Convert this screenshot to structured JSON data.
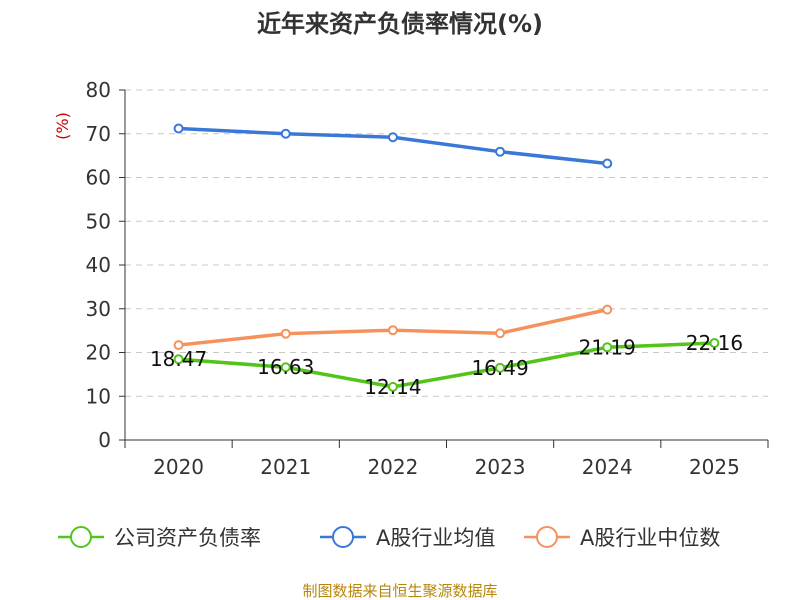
{
  "chart_data": {
    "type": "line",
    "title": "近年来资产负债率情况(%)",
    "y_unit": "(%)",
    "ylim": [
      0,
      80
    ],
    "y_ticks": [
      0,
      10,
      20,
      30,
      40,
      50,
      60,
      70,
      80
    ],
    "grid": true,
    "legend_position": "bottom",
    "categories": [
      "2020",
      "2021",
      "2022",
      "2023",
      "2024",
      "2025"
    ],
    "series": [
      {
        "name": "公司资产负债率",
        "color": "#52c41a",
        "values": [
          18.47,
          16.63,
          12.14,
          16.49,
          21.19,
          22.16
        ],
        "labels": [
          "18.47",
          "16.63",
          "12.14",
          "16.49",
          "21.19",
          "22.16"
        ],
        "show_labels": true
      },
      {
        "name": "A股行业均值",
        "color": "#3a78d8",
        "values": [
          71.2,
          70.0,
          69.2,
          65.9,
          63.2,
          null
        ],
        "show_labels": false
      },
      {
        "name": "A股行业中位数",
        "color": "#f5915a",
        "values": [
          21.7,
          24.3,
          25.1,
          24.4,
          29.8,
          null
        ],
        "show_labels": false
      }
    ]
  },
  "source": "制图数据来自恒生聚源数据库"
}
